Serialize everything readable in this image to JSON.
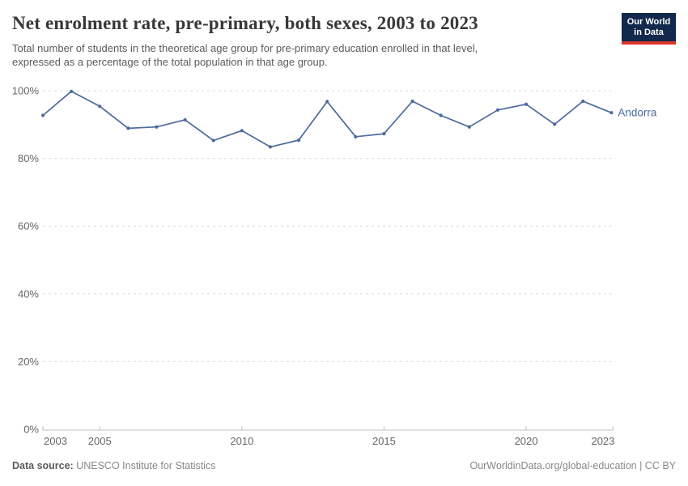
{
  "header": {
    "title": "Net enrolment rate, pre-primary, both sexes, 2003 to 2023",
    "subtitle_line1": "Total number of students in the theoretical age group for pre-primary education enrolled in that level,",
    "subtitle_line2": "expressed as a percentage of the total population in that age group."
  },
  "logo": {
    "line1": "Our World",
    "line2": "in Data",
    "bg_color": "#12294b",
    "stripe_color": "#dc352d"
  },
  "chart_data": {
    "type": "line",
    "title": "Net enrolment rate, pre-primary, both sexes, 2003 to 2023",
    "x": [
      2003,
      2004,
      2005,
      2006,
      2007,
      2008,
      2009,
      2010,
      2011,
      2012,
      2013,
      2014,
      2015,
      2016,
      2017,
      2018,
      2019,
      2020,
      2021,
      2022,
      2023
    ],
    "series": [
      {
        "name": "Andorra",
        "color": "#4C6A9C",
        "values": [
          92.7,
          99.8,
          95.4,
          88.9,
          89.3,
          91.4,
          85.3,
          88.2,
          83.4,
          85.4,
          96.8,
          86.4,
          87.3,
          96.9,
          92.7,
          89.3,
          94.3,
          96.0,
          90.1,
          96.9,
          93.5
        ]
      }
    ],
    "ylim": [
      0,
      100
    ],
    "yticks": [
      0,
      20,
      40,
      60,
      80,
      100
    ],
    "ytick_suffix": "%",
    "xticks": [
      2003,
      2005,
      2010,
      2015,
      2020,
      2023
    ],
    "grid": "horizontal-dashed",
    "grid_color": "#dcdcdc",
    "axis_color": "#c2c2c2",
    "tick_label_color": "#666666",
    "legend_position": "end-of-line"
  },
  "footer": {
    "datasource_label": "Data source:",
    "datasource_value": " UNESCO Institute for Statistics",
    "attribution": "OurWorldinData.org/global-education | CC BY"
  }
}
